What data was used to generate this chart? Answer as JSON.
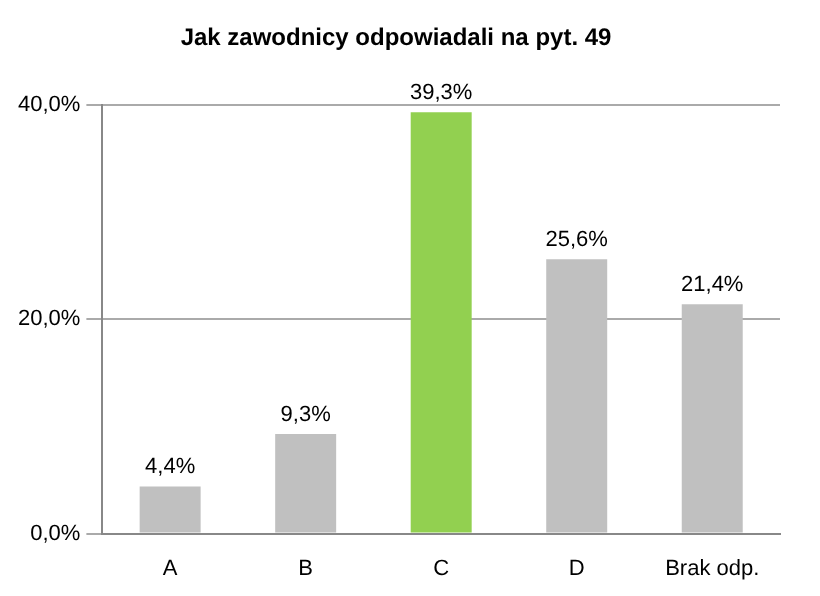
{
  "chart_data": {
    "type": "bar",
    "title": "Jak zawodnicy odpowiadali na pyt. 49",
    "categories": [
      "A",
      "B",
      "C",
      "D",
      "Brak odp."
    ],
    "values": [
      4.4,
      9.3,
      39.3,
      25.6,
      21.4
    ],
    "colors": [
      "#c0c0c0",
      "#c0c0c0",
      "#92d050",
      "#c0c0c0",
      "#c0c0c0"
    ],
    "value_labels": [
      "4,4%",
      "9,3%",
      "39,3%",
      "25,6%",
      "21,4%"
    ],
    "ylim": [
      0,
      40
    ],
    "yticks": [
      {
        "value": 0,
        "label": "0,0%"
      },
      {
        "value": 20,
        "label": "20,0%"
      },
      {
        "value": 40,
        "label": "40,0%"
      }
    ],
    "grid": "y",
    "legend": false
  }
}
